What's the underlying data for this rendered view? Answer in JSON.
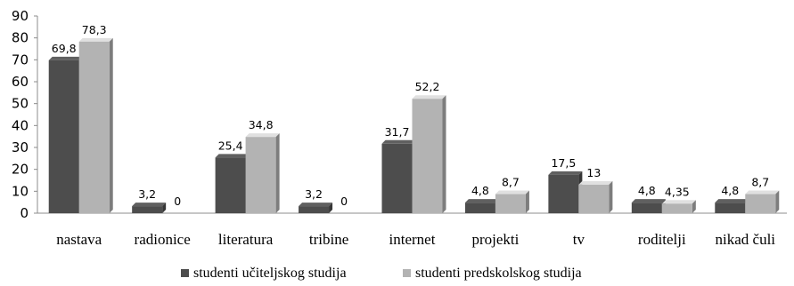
{
  "chart_data": {
    "type": "bar",
    "categories": [
      "nastava",
      "radionice",
      "literatura",
      "tribine",
      "internet",
      "projekti",
      "tv",
      "roditelji",
      "nikad čuli"
    ],
    "series": [
      {
        "name": "studenti učiteljskog studija",
        "values": [
          69.8,
          3.2,
          25.4,
          3.2,
          31.7,
          4.8,
          17.5,
          4.8,
          4.8
        ],
        "labels": [
          "69,8",
          "3,2",
          "25,4",
          "3,2",
          "31,7",
          "4,8",
          "17,5",
          "4,8",
          "4,8"
        ],
        "color": "#4d4d4d"
      },
      {
        "name": "studenti predskolskog studija",
        "values": [
          78.3,
          0,
          34.8,
          0,
          52.2,
          8.7,
          13,
          4.35,
          8.7
        ],
        "labels": [
          "78,3",
          "0",
          "34,8",
          "0",
          "52,2",
          "8,7",
          "13",
          "4,35",
          "8,7"
        ],
        "color": "#b3b3b3"
      }
    ],
    "y_ticks": [
      "0",
      "10",
      "20",
      "30",
      "40",
      "50",
      "60",
      "70",
      "80",
      "90"
    ],
    "ylim": [
      0,
      90
    ],
    "title": "",
    "xlabel": "",
    "ylabel": "",
    "grid": false,
    "legend_position": "bottom"
  }
}
